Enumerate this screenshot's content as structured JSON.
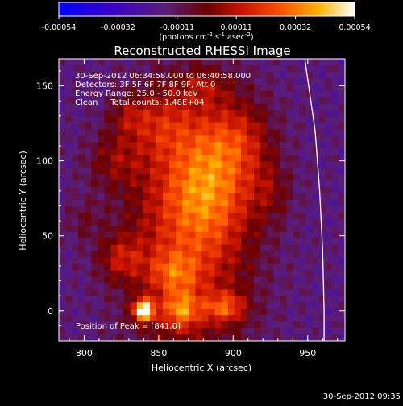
{
  "chart_data": {
    "type": "heatmap",
    "title": "Reconstructed RHESSI Image",
    "xlabel": "Heliocentric X (arcsec)",
    "ylabel": "Heliocentric Y (arcsec)",
    "xlim": [
      783,
      975
    ],
    "ylim": [
      -20,
      168
    ],
    "x_ticks": [
      "800",
      "850",
      "900",
      "950"
    ],
    "y_ticks": [
      "0",
      "50",
      "100",
      "150"
    ],
    "colorbar": {
      "ticks": [
        "-0.00054",
        "-0.00032",
        "-0.00011",
        "0.00011",
        "0.00032",
        "0.00054"
      ],
      "unit_prefix": "(photons cm",
      "unit_exp1": "-2",
      "unit_mid": " s",
      "unit_exp2": "-1",
      "unit_mid2": " asec",
      "unit_exp3": "-2",
      "unit_suffix": ")",
      "range": [
        -0.00054,
        0.00054
      ]
    },
    "annotations": [
      "30-Sep-2012 06:34:58.000 to 06:40:58.000",
      "Detectors: 3F 5F 6F 7F 8F 9F, Att 0",
      "Energy Range: 25.0 - 50.0 keV",
      "Clean     Total counts: 1.48E+04"
    ],
    "peak_label": "Position of Peak = [841,0]",
    "peak_position": [
      841,
      0
    ],
    "limb_curve": [
      [
        948,
        168
      ],
      [
        955,
        120
      ],
      [
        958,
        80
      ],
      [
        960,
        40
      ],
      [
        961,
        0
      ],
      [
        961,
        -20
      ]
    ],
    "footer_timestamp": "30-Sep-2012 09:35"
  }
}
